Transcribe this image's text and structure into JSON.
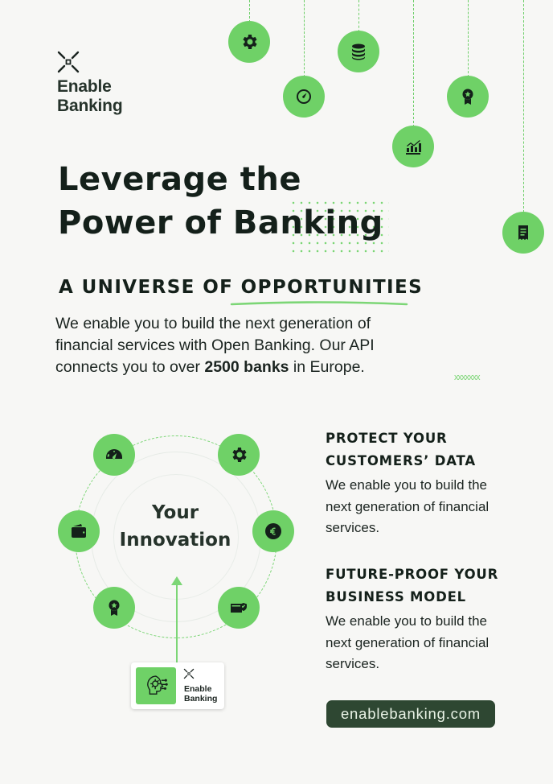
{
  "brand": {
    "name_line1": "Enable",
    "name_line2": "Banking"
  },
  "headline": {
    "line1": "Leverage the",
    "line2": "Power of Banking"
  },
  "subhead": {
    "prefix": "A UNIVERSE OF ",
    "highlight": "OPPORTUNITIES"
  },
  "intro": {
    "before": "We enable you to build the next generation of financial services with Open Banking. Our API connects you to over ",
    "bold": "2500 banks",
    "after": " in Europe."
  },
  "decor": {
    "xs": "xxxxxxx"
  },
  "hanging_icons": [
    "gear-icon",
    "gauge-icon",
    "coins-icon",
    "growth-chart-icon",
    "award-icon",
    "receipt-icon"
  ],
  "diagram": {
    "center_line1": "Your",
    "center_line2": "Innovation",
    "orbit_icons": [
      "speedometer-icon",
      "gear-icon",
      "wallet-icon",
      "euro-icon",
      "award-icon",
      "verified-card-icon"
    ],
    "card": {
      "line1": "Enable",
      "line2": "Banking"
    }
  },
  "features": [
    {
      "title_line1": "PROTECT YOUR",
      "title_line2": "CUSTOMERS’ DATA",
      "desc": "We enable you to build the next generation of financial services."
    },
    {
      "title_line1": "FUTURE-PROOF YOUR",
      "title_line2": "BUSINESS MODEL",
      "desc": "We enable you to build the next generation of financial services."
    }
  ],
  "website": "enablebanking.com",
  "colors": {
    "accent": "#6fd167",
    "dark": "#14201a",
    "button_bg": "#2e4732",
    "background": "#f7f7f5"
  }
}
